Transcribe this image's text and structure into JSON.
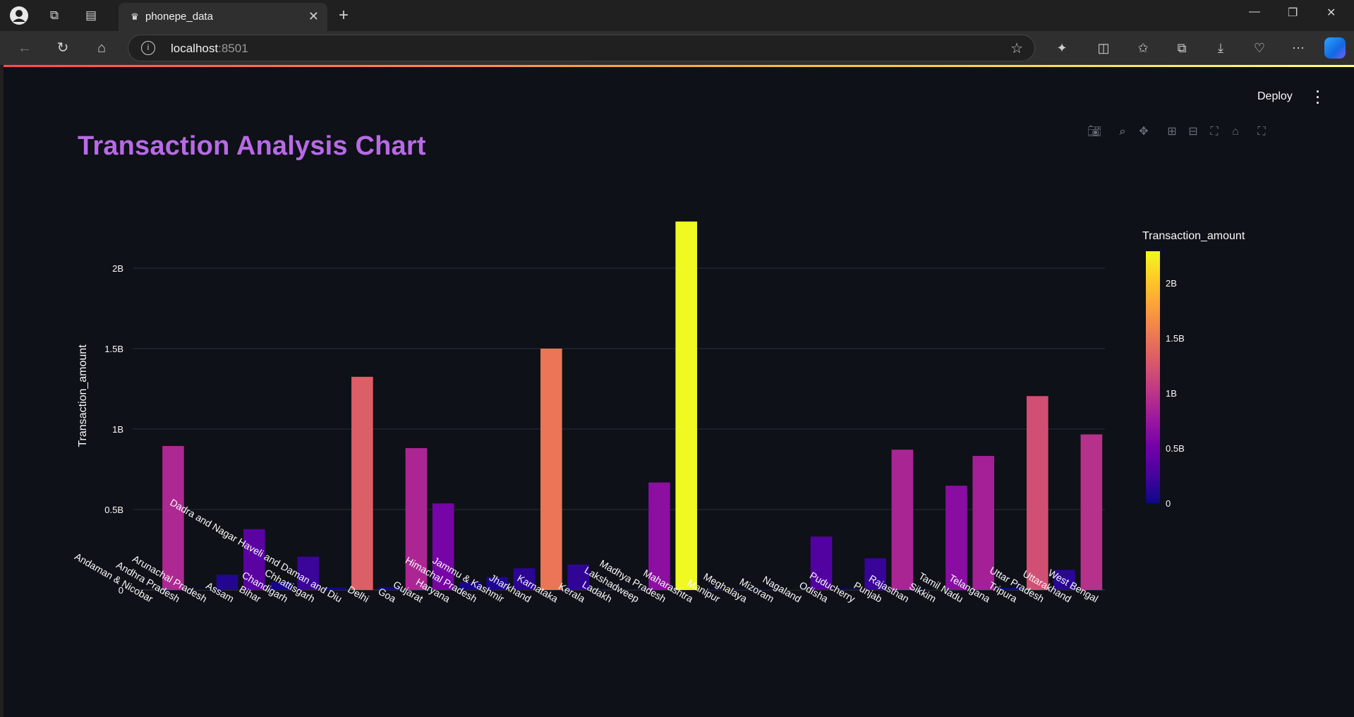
{
  "browser": {
    "tab_title": "phonepe_data",
    "url_host": "localhost",
    "url_port": ":8501"
  },
  "app": {
    "deploy_label": "Deploy",
    "page_title": "Transaction Analysis Chart",
    "title_color": "#b86ae6",
    "background": "#0e1117"
  },
  "chart_data": {
    "type": "bar",
    "title": "",
    "xlabel": "",
    "ylabel": "Transaction_amount",
    "ylim": [
      0,
      2300000000
    ],
    "yticks": [
      {
        "v": 0,
        "label": "0"
      },
      {
        "v": 500000000,
        "label": "0.5B"
      },
      {
        "v": 1000000000,
        "label": "1B"
      },
      {
        "v": 1500000000,
        "label": "1.5B"
      },
      {
        "v": 2000000000,
        "label": "2B"
      }
    ],
    "colorbar": {
      "title": "Transaction_amount",
      "ticks": [
        {
          "v": 0,
          "label": "0"
        },
        {
          "v": 500000000,
          "label": "0.5B"
        },
        {
          "v": 1000000000,
          "label": "1B"
        },
        {
          "v": 1500000000,
          "label": "1.5B"
        },
        {
          "v": 2000000000,
          "label": "2B"
        }
      ],
      "colorscale": [
        "#0d0887",
        "#46039f",
        "#7201a8",
        "#9c179e",
        "#bd3786",
        "#d8576b",
        "#ed7953",
        "#fb9f3a",
        "#fdca26",
        "#f0f921"
      ],
      "cmax": 2290000000
    },
    "categories": [
      "Andaman & Nicobar",
      "Andhra Pradesh",
      "Arunachal Pradesh",
      "Assam",
      "Bihar",
      "Chandigarh",
      "Chhattisgarh",
      "Dadra and Nagar Haveli and Daman and Diu",
      "Delhi",
      "Goa",
      "Gujarat",
      "Haryana",
      "Himachal Pradesh",
      "Jammu & Kashmir",
      "Jharkhand",
      "Karnataka",
      "Kerala",
      "Ladakh",
      "Lakshadweep",
      "Madhya Pradesh",
      "Maharashtra",
      "Manipur",
      "Meghalaya",
      "Mizoram",
      "Nagaland",
      "Odisha",
      "Puducherry",
      "Punjab",
      "Rajasthan",
      "Sikkim",
      "Tamil Nadu",
      "Telangana",
      "Tripura",
      "Uttar Pradesh",
      "Uttarakhand",
      "West Bengal"
    ],
    "values": [
      0,
      895000000,
      2000000,
      95000000,
      378000000,
      48000000,
      207000000,
      15000000,
      1325000000,
      18000000,
      882000000,
      538000000,
      50000000,
      80000000,
      135000000,
      1500000000,
      158000000,
      1000000,
      1000000,
      668000000,
      2290000000,
      6000000,
      5000000,
      2000000,
      2000000,
      332000000,
      8000000,
      197000000,
      872000000,
      3000000,
      648000000,
      833000000,
      14000000,
      1205000000,
      125000000,
      967000000
    ]
  }
}
